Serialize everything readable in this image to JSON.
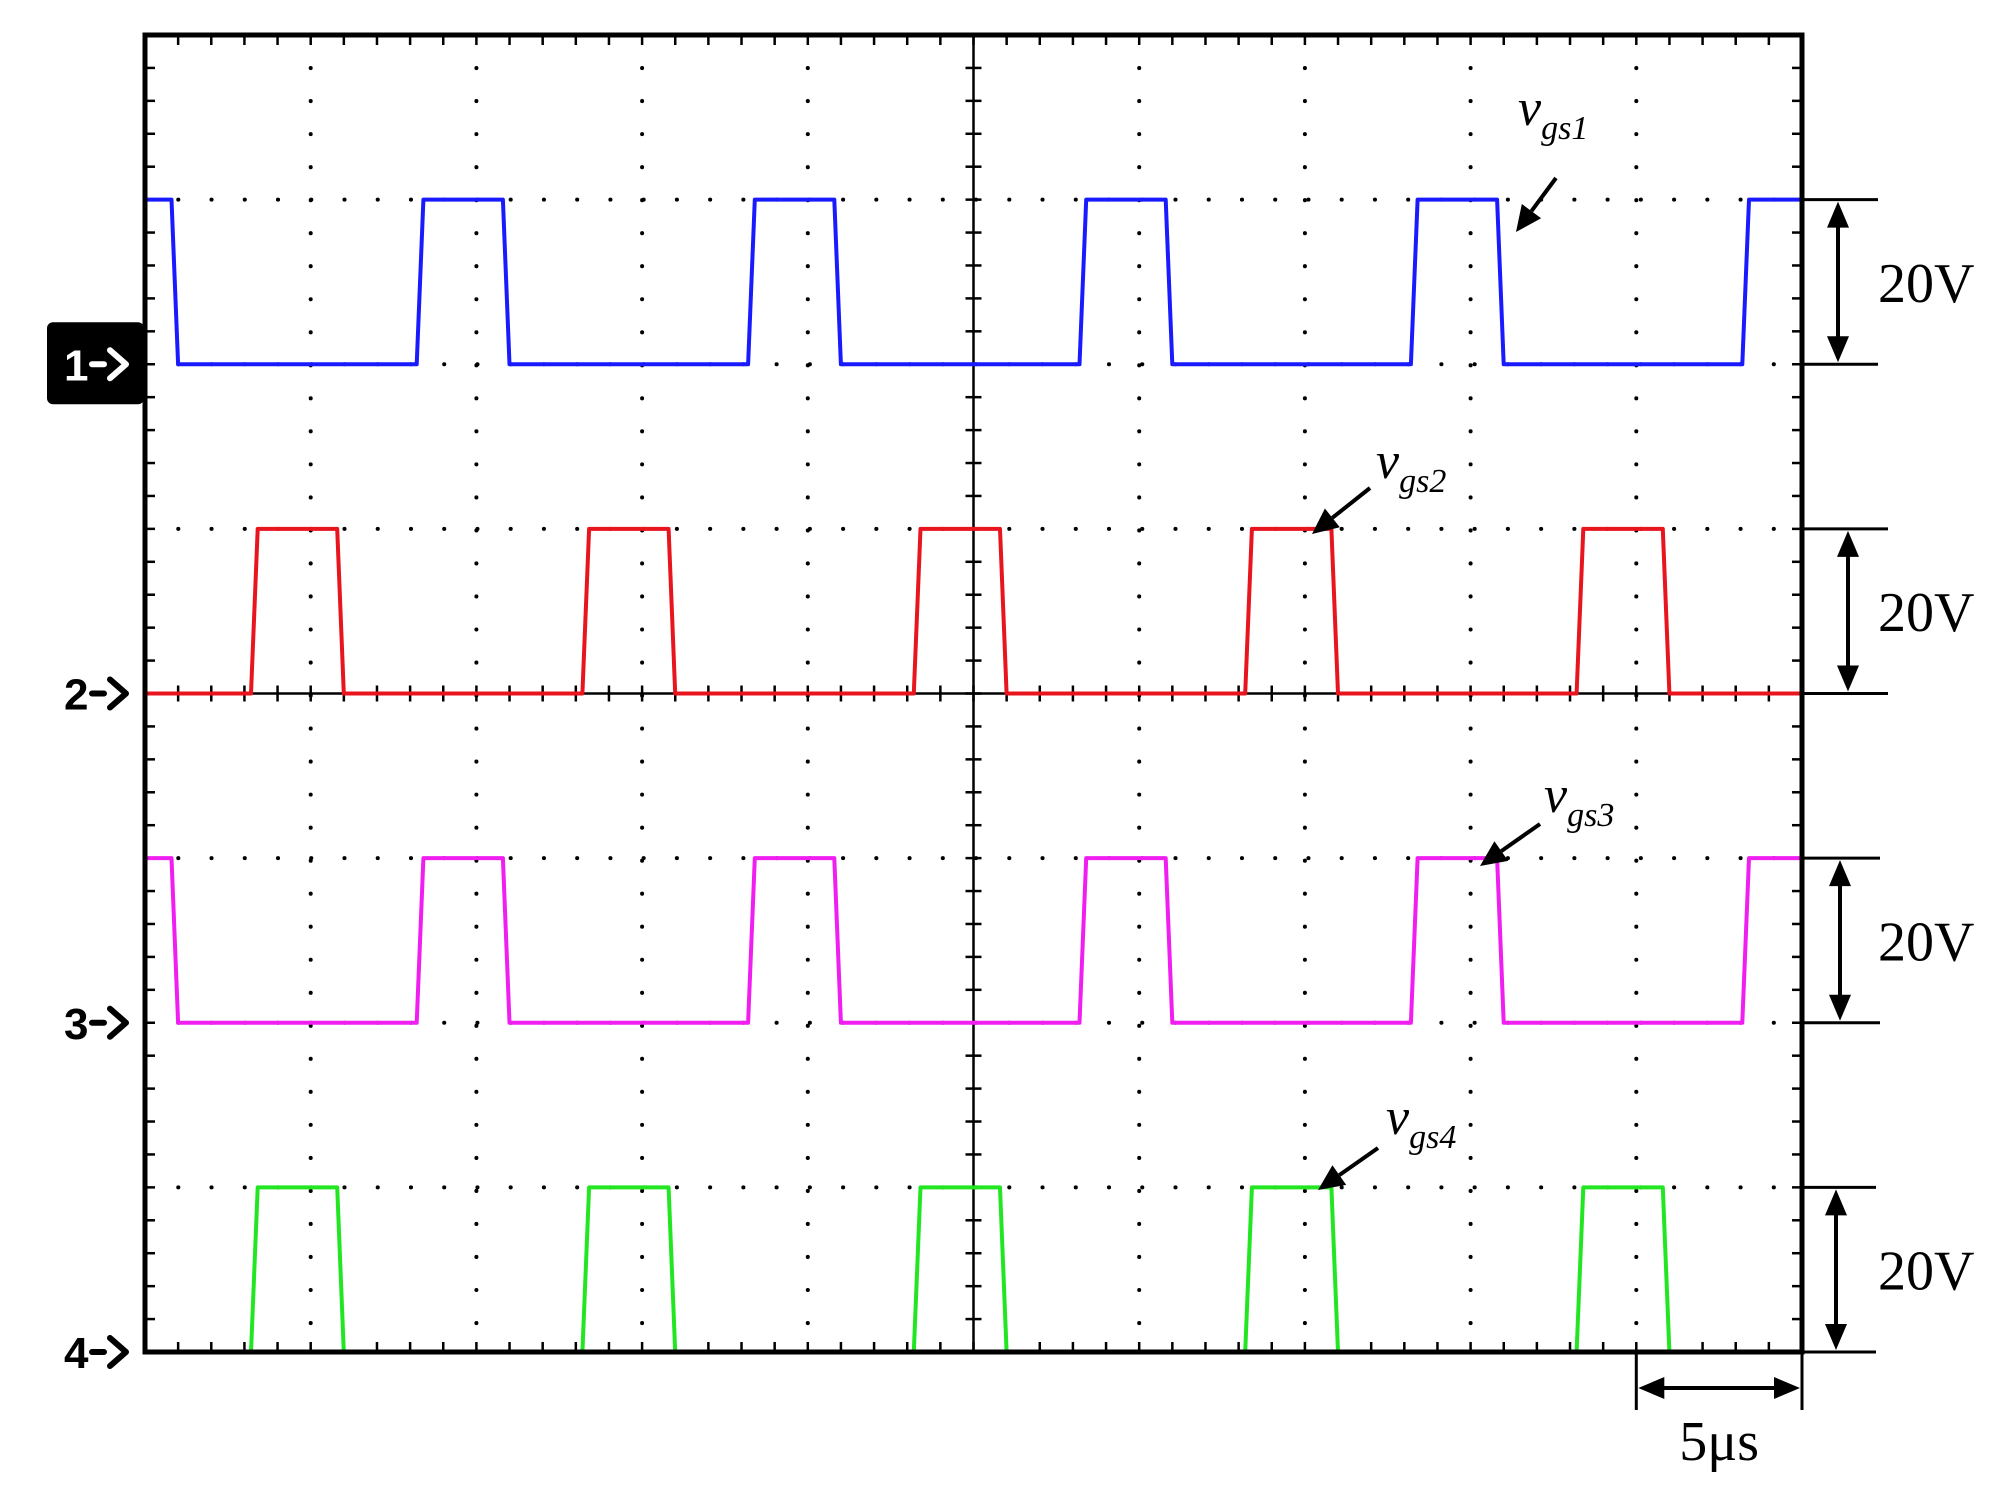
{
  "chart_data": {
    "type": "line",
    "title": "",
    "xlabel": "",
    "ylabel": "",
    "grid": true,
    "x_divisions": 10,
    "y_divisions": 8,
    "time_per_div_us": 5,
    "volts_per_div": 20,
    "x_range_us": [
      0,
      50
    ],
    "series": [
      {
        "name": "v_gs1",
        "label_main": "v",
        "label_sub": "gs1",
        "color": "#1a1aff",
        "marker": "1",
        "points": [
          [
            0,
            20
          ],
          [
            0.8,
            20
          ],
          [
            1.0,
            0
          ],
          [
            8.2,
            0
          ],
          [
            8.4,
            20
          ],
          [
            10.8,
            20
          ],
          [
            11.0,
            0
          ],
          [
            18.2,
            0
          ],
          [
            18.4,
            20
          ],
          [
            20.8,
            20
          ],
          [
            21.0,
            0
          ],
          [
            28.2,
            0
          ],
          [
            28.4,
            20
          ],
          [
            30.8,
            20
          ],
          [
            31.0,
            0
          ],
          [
            38.2,
            0
          ],
          [
            38.4,
            20
          ],
          [
            40.8,
            20
          ],
          [
            41.0,
            0
          ],
          [
            48.2,
            0
          ],
          [
            48.4,
            20
          ],
          [
            50,
            20
          ]
        ]
      },
      {
        "name": "v_gs2",
        "label_main": "v",
        "label_sub": "gs2",
        "color": "#e8141e",
        "marker": "2",
        "points": [
          [
            0,
            0
          ],
          [
            3.2,
            0
          ],
          [
            3.4,
            20
          ],
          [
            5.8,
            20
          ],
          [
            6.0,
            0
          ],
          [
            13.2,
            0
          ],
          [
            13.4,
            20
          ],
          [
            15.8,
            20
          ],
          [
            16.0,
            0
          ],
          [
            23.2,
            0
          ],
          [
            23.4,
            20
          ],
          [
            25.8,
            20
          ],
          [
            26.0,
            0
          ],
          [
            33.2,
            0
          ],
          [
            33.4,
            20
          ],
          [
            35.8,
            20
          ],
          [
            36.0,
            0
          ],
          [
            43.2,
            0
          ],
          [
            43.4,
            20
          ],
          [
            45.8,
            20
          ],
          [
            46.0,
            0
          ],
          [
            50,
            0
          ]
        ]
      },
      {
        "name": "v_gs3",
        "label_main": "v",
        "label_sub": "gs3",
        "color": "#f01ef0",
        "marker": "3",
        "points": [
          [
            0,
            20
          ],
          [
            0.8,
            20
          ],
          [
            1.0,
            0
          ],
          [
            8.2,
            0
          ],
          [
            8.4,
            20
          ],
          [
            10.8,
            20
          ],
          [
            11.0,
            0
          ],
          [
            18.2,
            0
          ],
          [
            18.4,
            20
          ],
          [
            20.8,
            20
          ],
          [
            21.0,
            0
          ],
          [
            28.2,
            0
          ],
          [
            28.4,
            20
          ],
          [
            30.8,
            20
          ],
          [
            31.0,
            0
          ],
          [
            38.2,
            0
          ],
          [
            38.4,
            20
          ],
          [
            40.8,
            20
          ],
          [
            41.0,
            0
          ],
          [
            48.2,
            0
          ],
          [
            48.4,
            20
          ],
          [
            50,
            20
          ]
        ]
      },
      {
        "name": "v_gs4",
        "label_main": "v",
        "label_sub": "gs4",
        "color": "#22e622",
        "marker": "4",
        "points": [
          [
            0,
            0
          ],
          [
            3.2,
            0
          ],
          [
            3.4,
            20
          ],
          [
            5.8,
            20
          ],
          [
            6.0,
            0
          ],
          [
            13.2,
            0
          ],
          [
            13.4,
            20
          ],
          [
            15.8,
            20
          ],
          [
            16.0,
            0
          ],
          [
            23.2,
            0
          ],
          [
            23.4,
            20
          ],
          [
            25.8,
            20
          ],
          [
            26.0,
            0
          ],
          [
            33.2,
            0
          ],
          [
            33.4,
            20
          ],
          [
            35.8,
            20
          ],
          [
            36.0,
            0
          ],
          [
            43.2,
            0
          ],
          [
            43.4,
            20
          ],
          [
            45.8,
            20
          ],
          [
            46.0,
            0
          ],
          [
            50,
            0
          ]
        ]
      }
    ],
    "voltage_scale_label": "20V",
    "time_scale_label": "5μs"
  }
}
